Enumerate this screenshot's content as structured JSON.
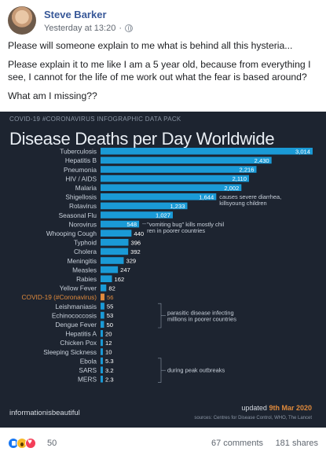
{
  "post": {
    "author": "Steve Barker",
    "timestamp": "Yesterday at 13:20",
    "paragraphs": [
      "Please will someone explain to me what is behind all this hysteria...",
      "Please explain it to me like I am a 5 year old, because from everything I see, I cannot for the life of me work out what the fear is based around?",
      "What am I missing??"
    ]
  },
  "infographic": {
    "pack_label": "COVID-19 #CORONAVIRUS INFOGRAPHIC DATA PACK",
    "logo": "informationisbeautiful",
    "updated_prefix": "updated",
    "updated_date": "9th Mar 2020",
    "sources": "sources: Centres for Disease Control, WHO, The Lancet"
  },
  "chart_data": {
    "type": "bar",
    "orientation": "horizontal",
    "title": "Disease Deaths per Day Worldwide",
    "categories": [
      "Tuberculosis",
      "Hepatitis B",
      "Pneumonia",
      "HIV / AIDS",
      "Malaria",
      "Shigellosis",
      "Rotavirus",
      "Seasonal Flu",
      "Norovirus",
      "Whooping Cough",
      "Typhoid",
      "Cholera",
      "Meningitis",
      "Measles",
      "Rabies",
      "Yellow Fever",
      "COVID-19 (#Coronavirus)",
      "Leishmaniasis",
      "Echinococcosis",
      "Dengue Fever",
      "Hepatitis A",
      "Chicken Pox",
      "Sleeping Sickness",
      "Ebola",
      "SARS",
      "MERS"
    ],
    "values": [
      3014,
      2430,
      2216,
      2110,
      2002,
      1644,
      1233,
      1027,
      548,
      440,
      396,
      392,
      329,
      247,
      162,
      82,
      56,
      55,
      53,
      50,
      20,
      12,
      10,
      5.3,
      3.2,
      2.3
    ],
    "value_labels": [
      "3,014",
      "2,430",
      "2,216",
      "2,110",
      "2,002",
      "1,644",
      "1,233",
      "1,027",
      "548",
      "440",
      "396",
      "392",
      "329",
      "247",
      "162",
      "82",
      "56",
      "55",
      "53",
      "50",
      "20",
      "12",
      "10",
      "5.3",
      "3.2",
      "2.3"
    ],
    "highlight_category": "COVID-19 (#Coronavirus)",
    "colors": {
      "bar": "#1a9ad6",
      "highlight": "#e08a3c",
      "label": "#c9d1db",
      "background": "#1d2430"
    },
    "annotations": [
      {
        "text": "causes severe diarrhea, killsyoung children",
        "category": "Shigellosis"
      },
      {
        "text": "\"vomiting bug\" kills mostly children in poorer countries",
        "category": "Norovirus"
      },
      {
        "text": "parasitic disease infecting millions in poorer countries",
        "categories": [
          "Leishmaniasis",
          "Dengue Fever"
        ]
      },
      {
        "text": "during peak outbreaks",
        "categories": [
          "Ebola",
          "MERS"
        ]
      }
    ],
    "grid": false,
    "legend": "none"
  },
  "reactions": {
    "icons": [
      "like-icon",
      "wow-icon",
      "love-icon"
    ],
    "count": "50",
    "comments": "67 comments",
    "shares": "181 shares"
  }
}
